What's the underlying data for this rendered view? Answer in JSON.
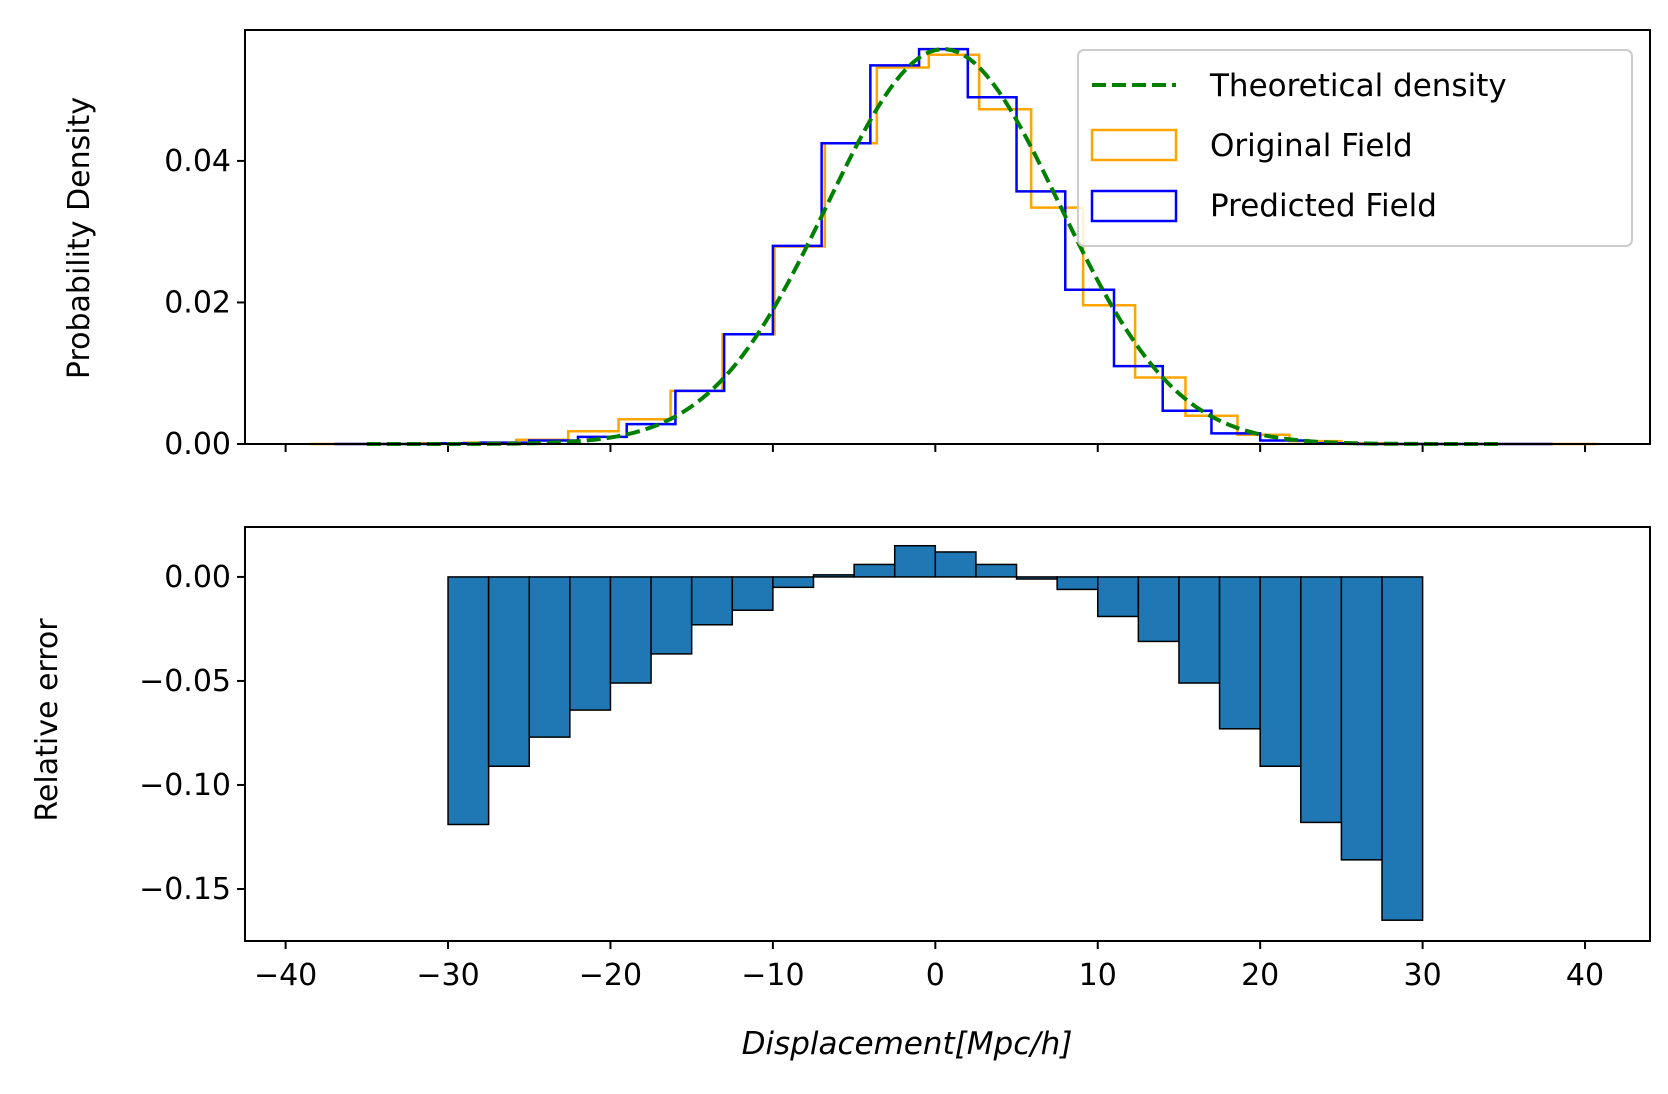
{
  "colors": {
    "theory": "#008000",
    "original": "#ffa500",
    "predicted": "#0000ff",
    "error_bar": "#1f77b4"
  },
  "chart_data": [
    {
      "type": "step-histogram",
      "ylabel": "Probability Density",
      "xlim": [
        -42.5,
        44
      ],
      "ylim": [
        0,
        0.0585
      ],
      "yticks": [
        0.0,
        0.02,
        0.04
      ],
      "ytick_labels": [
        "0.00",
        "0.02",
        "0.04"
      ],
      "xticks": [
        -40,
        -30,
        -20,
        -10,
        0,
        10,
        20,
        30,
        40
      ],
      "legend": {
        "placement": "top-right",
        "entries": [
          "Theoretical density",
          "Original Field",
          "Predicted Field"
        ]
      },
      "series": [
        {
          "name": "Original Field",
          "style": "step",
          "edges": [
            -38.5,
            -35.3,
            -32.2,
            -29.0,
            -25.8,
            -22.6,
            -19.5,
            -16.3,
            -13.1,
            -9.9,
            -6.8,
            -3.6,
            -0.4,
            2.7,
            5.9,
            9.1,
            12.3,
            15.4,
            18.6,
            21.8,
            25.0,
            28.1,
            31.3,
            34.5,
            37.7,
            40.8
          ],
          "values": [
            0.0,
            0.0,
            0.0001,
            0.0002,
            0.0006,
            0.0018,
            0.0035,
            0.0075,
            0.0155,
            0.0279,
            0.0425,
            0.0532,
            0.055,
            0.0473,
            0.0334,
            0.0196,
            0.0094,
            0.004,
            0.0013,
            0.0004,
            0.0001,
            0.0,
            0.0,
            0.0,
            0.0
          ]
        },
        {
          "name": "Predicted Field",
          "style": "step",
          "edges": [
            -37.0,
            -34.0,
            -31.0,
            -28.0,
            -25.0,
            -22.0,
            -19.0,
            -16.0,
            -13.0,
            -10.0,
            -7.0,
            -4.0,
            -1.0,
            2.0,
            5.0,
            8.0,
            11.0,
            14.0,
            17.0,
            20.0,
            23.0,
            26.0,
            29.0,
            32.0,
            35.0,
            38.0
          ],
          "values": [
            0.0,
            0.0,
            0.0001,
            0.0002,
            0.0005,
            0.001,
            0.0028,
            0.0075,
            0.0155,
            0.028,
            0.0425,
            0.0535,
            0.0558,
            0.049,
            0.0357,
            0.0218,
            0.011,
            0.0047,
            0.0015,
            0.0005,
            0.0001,
            0.0,
            0.0,
            0.0,
            0.0
          ]
        },
        {
          "name": "Theoretical density",
          "style": "dashed-line",
          "curve": "gaussian",
          "mean": 0.5,
          "sigma": 7.15,
          "x_range": [
            -35,
            35
          ]
        }
      ]
    },
    {
      "type": "bar",
      "ylabel": "Relative error",
      "xlabel": "Displacement[Mpc/h]",
      "xlim": [
        -42.5,
        44
      ],
      "ylim": [
        -0.175,
        0.024
      ],
      "xticks": [
        -40,
        -30,
        -20,
        -10,
        0,
        10,
        20,
        30,
        40
      ],
      "xtick_labels": [
        "−40",
        "−30",
        "−20",
        "−10",
        "0",
        "10",
        "20",
        "30",
        "40"
      ],
      "yticks": [
        0.0,
        -0.05,
        -0.1,
        -0.15
      ],
      "ytick_labels": [
        "0.00",
        "−0.05",
        "−0.10",
        "−0.15"
      ],
      "bin_edges": [
        -30.0,
        -27.5,
        -25.0,
        -22.5,
        -20.0,
        -17.5,
        -15.0,
        -12.5,
        -10.0,
        -7.5,
        -5.0,
        -2.5,
        0.0,
        2.5,
        5.0,
        7.5,
        10.0,
        12.5,
        15.0,
        17.5,
        20.0,
        22.5,
        25.0,
        27.5,
        30.0
      ],
      "values": [
        -0.119,
        -0.091,
        -0.077,
        -0.064,
        -0.051,
        -0.037,
        -0.023,
        -0.016,
        -0.005,
        0.001,
        0.006,
        0.015,
        0.012,
        0.006,
        -0.001,
        -0.006,
        -0.019,
        -0.031,
        -0.051,
        -0.073,
        -0.091,
        -0.118,
        -0.136,
        -0.165
      ]
    }
  ]
}
